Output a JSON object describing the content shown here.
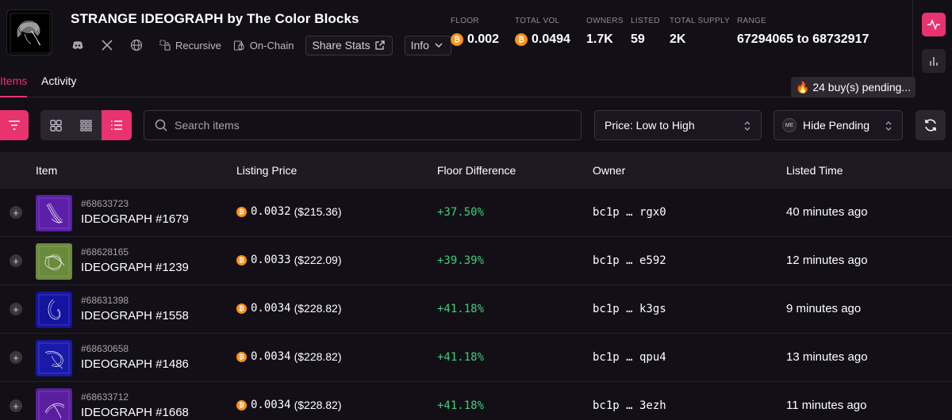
{
  "collection": {
    "title": "STRANGE IDEOGRAPH by The Color Blocks",
    "logo_icon": "abstract-swirl-logo",
    "links": [
      "discord-icon",
      "x-icon",
      "globe-icon"
    ],
    "tags": [
      {
        "icon": "recursive-icon",
        "label": "Recursive"
      },
      {
        "icon": "lock-chain-icon",
        "label": "On-Chain"
      }
    ],
    "share_label": "Share Stats",
    "info_label": "Info"
  },
  "stats": [
    {
      "label": "FLOOR",
      "value": "0.002",
      "btc": true
    },
    {
      "label": "TOTAL VOL",
      "value": "0.0494",
      "btc": true
    },
    {
      "label": "OWNERS",
      "value": "1.7K",
      "btc": false
    },
    {
      "label": "LISTED",
      "value": "59",
      "btc": false
    },
    {
      "label": "TOTAL SUPPLY",
      "value": "2K",
      "btc": false
    },
    {
      "label": "RANGE",
      "value": "67294065 to 68732917",
      "btc": false
    }
  ],
  "tabs": {
    "items_label": "Items",
    "activity_label": "Activity",
    "active": "Items"
  },
  "pending_badge": "🔥 24 buy(s) pending...",
  "toolbar": {
    "search_placeholder": "Search items",
    "sort_value": "Price: Low to High",
    "pending_filter_value": "Hide Pending",
    "active_view": "list"
  },
  "table": {
    "headers": {
      "item": "Item",
      "listing_price": "Listing Price",
      "floor_difference": "Floor Difference",
      "owner": "Owner",
      "listed_time": "Listed Time"
    },
    "rows": [
      {
        "inscription": "#68633723",
        "name": "IDEOGRAPH #1679",
        "price_btc": "0.0032",
        "price_usd": "($215.36)",
        "diff": "+37.50%",
        "owner": "bc1p … rgx0",
        "time": "40 minutes ago",
        "thumb_color": "#5b1fa8"
      },
      {
        "inscription": "#68628165",
        "name": "IDEOGRAPH #1239",
        "price_btc": "0.0033",
        "price_usd": "($222.09)",
        "diff": "+39.39%",
        "owner": "bc1p … e592",
        "time": "12 minutes ago",
        "thumb_color": "#6a8a3c"
      },
      {
        "inscription": "#68631398",
        "name": "IDEOGRAPH #1558",
        "price_btc": "0.0034",
        "price_usd": "($228.82)",
        "diff": "+41.18%",
        "owner": "bc1p … k3gs",
        "time": "9 minutes ago",
        "thumb_color": "#1414a0"
      },
      {
        "inscription": "#68630658",
        "name": "IDEOGRAPH #1486",
        "price_btc": "0.0034",
        "price_usd": "($228.82)",
        "diff": "+41.18%",
        "owner": "bc1p … qpu4",
        "time": "13 minutes ago",
        "thumb_color": "#1a1aa8"
      },
      {
        "inscription": "#68633712",
        "name": "IDEOGRAPH #1668",
        "price_btc": "0.0034",
        "price_usd": "($228.82)",
        "diff": "+41.18%",
        "owner": "bc1p … 3ezh",
        "time": "11 minutes ago",
        "thumb_color": "#5a1fa0"
      }
    ]
  },
  "colors": {
    "accent": "#e8336f",
    "positive": "#3ecf7a",
    "btc": "#f7931a",
    "background": "#120f17"
  }
}
